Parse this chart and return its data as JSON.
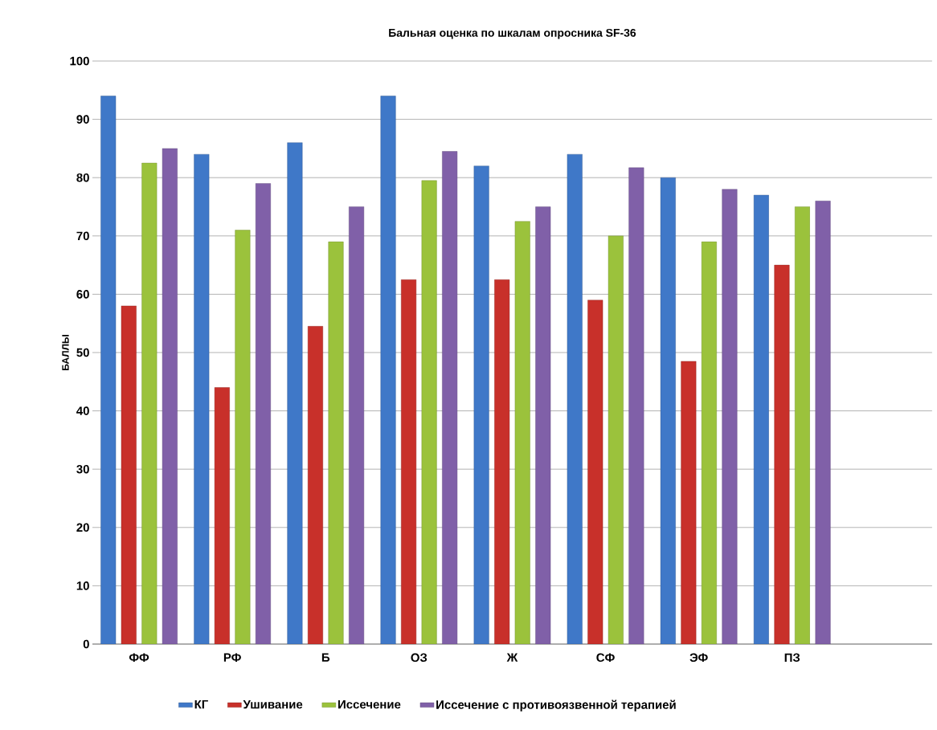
{
  "chart_data": {
    "type": "bar",
    "title": "Бальная оценка по шкалам опросника SF-36",
    "ylabel": "БАЛЛЫ",
    "categories": [
      "ФФ",
      "РФ",
      "Б",
      "ОЗ",
      "Ж",
      "СФ",
      "ЭФ",
      "ПЗ"
    ],
    "series": [
      {
        "name": "КГ",
        "color": "#3f78c8",
        "values": [
          94,
          84,
          86,
          94,
          82,
          84,
          80,
          77
        ]
      },
      {
        "name": "Ушивание",
        "color": "#c8302a",
        "values": [
          58,
          44,
          54.5,
          62.5,
          62.5,
          59,
          48.5,
          65
        ]
      },
      {
        "name": "Иссечение",
        "color": "#9bc23c",
        "values": [
          82.5,
          71,
          69,
          79.5,
          72.5,
          70,
          69,
          75
        ]
      },
      {
        "name": "Иссечение с противоязвенной терапией",
        "color": "#8060a8",
        "values": [
          85,
          79,
          75,
          84.5,
          75,
          81.7,
          78,
          76
        ]
      }
    ],
    "ylim": [
      0,
      100
    ],
    "yticks": [
      0,
      10,
      20,
      30,
      40,
      50,
      60,
      70,
      80,
      90,
      100
    ],
    "grid": "y",
    "legend": "bottom"
  }
}
